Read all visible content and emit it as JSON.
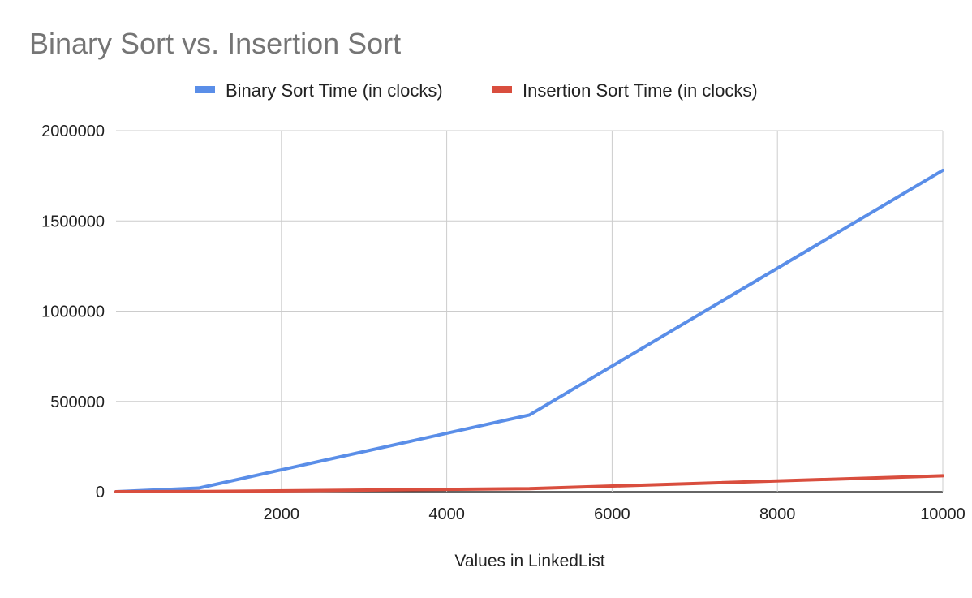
{
  "chart_data": {
    "type": "line",
    "title": "Binary Sort vs. Insertion Sort",
    "xlabel": "Values in LinkedList",
    "ylabel": "",
    "x": [
      0,
      1000,
      5000,
      10000
    ],
    "series": [
      {
        "name": "Binary Sort Time (in clocks)",
        "color": "#5a8ee8",
        "values": [
          0,
          20000,
          425000,
          1780000
        ]
      },
      {
        "name": "Insertion Sort Time (in clocks)",
        "color": "#d94e3e",
        "values": [
          0,
          1000,
          17000,
          88000
        ]
      }
    ],
    "xlim": [
      0,
      10000
    ],
    "ylim": [
      0,
      2000000
    ],
    "x_ticks": [
      "2000",
      "4000",
      "6000",
      "8000",
      "10000"
    ],
    "y_ticks": [
      "0",
      "500000",
      "1000000",
      "1500000",
      "2000000"
    ],
    "legend_position": "top",
    "grid": true
  }
}
